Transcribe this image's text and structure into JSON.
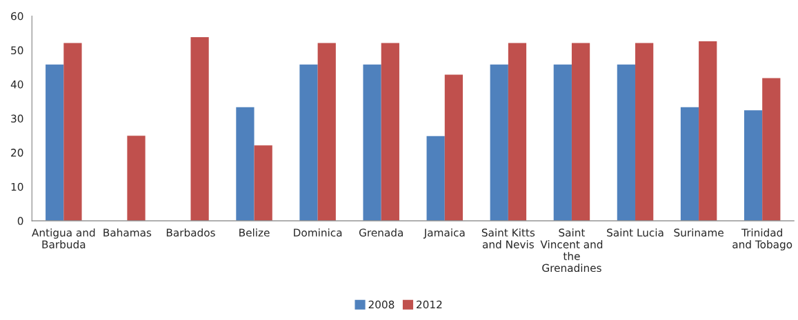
{
  "chart_data": {
    "type": "bar",
    "categories": [
      "Antigua and Barbuda",
      "Bahamas",
      "Barbados",
      "Belize",
      "Dominica",
      "Grenada",
      "Jamaica",
      "Saint Kitts and Nevis",
      "Saint Vincent and the Grenadines",
      "Saint Lucia",
      "Suriname",
      "Trinidad and Tobago"
    ],
    "series": [
      {
        "name": "2008",
        "color": "#4f81bd",
        "values": [
          45.8,
          null,
          null,
          33.3,
          45.8,
          45.8,
          24.8,
          45.8,
          45.8,
          45.8,
          33.3,
          32.4
        ]
      },
      {
        "name": "2012",
        "color": "#c0504d",
        "values": [
          52.1,
          24.9,
          53.8,
          22.1,
          52.1,
          52.1,
          42.8,
          52.1,
          52.1,
          52.1,
          52.6,
          41.8
        ]
      }
    ],
    "ylim": [
      0,
      60
    ],
    "yticks": [
      0,
      10,
      20,
      30,
      40,
      50,
      60
    ],
    "grid": false,
    "legend": "bottom"
  }
}
